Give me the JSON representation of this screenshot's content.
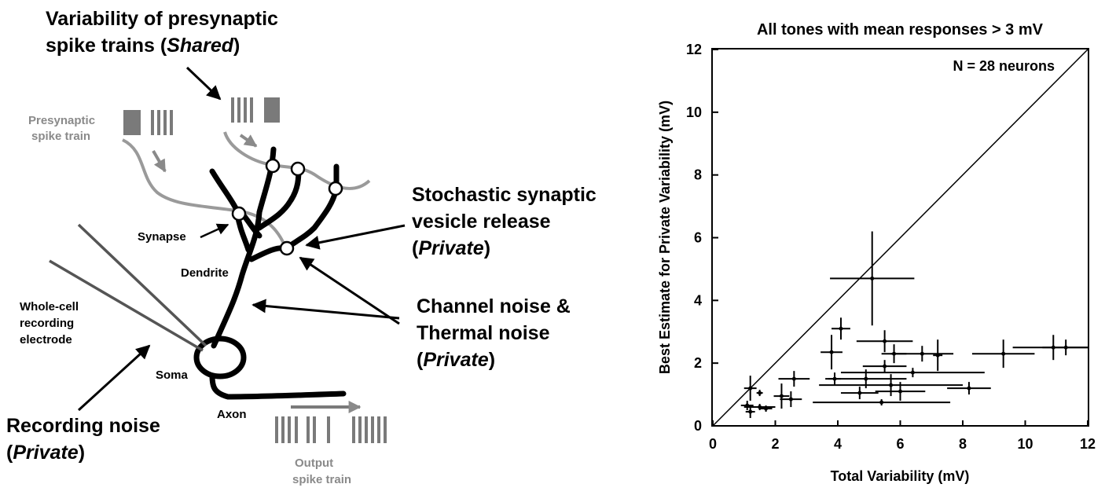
{
  "diagram": {
    "shared_title": {
      "line1": "Variability of presynaptic",
      "line2_prefix": "spike trains (",
      "line2_italic": "Shared",
      "line2_suffix": ")"
    },
    "presynaptic_label": {
      "line1": "Presynaptic",
      "line2": "spike train"
    },
    "synapse_label": "Synapse",
    "dendrite_label": "Dendrite",
    "soma_label": "Soma",
    "axon_label": "Axon",
    "electrode_label": {
      "line1": "Whole-cell",
      "line2": "recording",
      "line3": "electrode"
    },
    "output_label": {
      "line1": "Output",
      "line2": "spike train"
    },
    "vesicle_label": {
      "line1": "Stochastic synaptic",
      "line2": "vesicle release",
      "line3_prefix": "(",
      "line3_italic": "Private",
      "line3_suffix": ")"
    },
    "channel_label": {
      "line1": "Channel noise &",
      "line2": "Thermal noise",
      "line3_prefix": "(",
      "line3_italic": "Private",
      "line3_suffix": ")"
    },
    "recording_label": {
      "line1": "Recording noise",
      "line2_prefix": "(",
      "line2_italic": "Private",
      "line2_suffix": ")"
    },
    "colors": {
      "neuron": "#000000",
      "presynaptic": "#8a8a8a",
      "spike_bars": "#7a7a7a"
    }
  },
  "chart_data": {
    "type": "scatter",
    "title": "All tones with mean responses > 3 mV",
    "annotation": "N = 28 neurons",
    "xlabel": "Total Variability (mV)",
    "ylabel": "Best Estimate for Private Variability (mV)",
    "xlim": [
      0,
      12
    ],
    "ylim": [
      0,
      12
    ],
    "xticks": [
      0,
      2,
      4,
      6,
      8,
      10,
      12
    ],
    "yticks": [
      0,
      2,
      4,
      6,
      8,
      10,
      12
    ],
    "reference_line": "y = x",
    "grid": false,
    "points": [
      {
        "x": 5.1,
        "y": 4.7,
        "xerr": 1.35,
        "yerr": 1.5
      },
      {
        "x": 4.1,
        "y": 3.1,
        "xerr": 0.3,
        "yerr": 0.35
      },
      {
        "x": 3.8,
        "y": 2.35,
        "xerr": 0.35,
        "yerr": 0.55
      },
      {
        "x": 5.5,
        "y": 2.7,
        "xerr": 0.9,
        "yerr": 0.35
      },
      {
        "x": 5.8,
        "y": 2.3,
        "xerr": 0.4,
        "yerr": 0.3
      },
      {
        "x": 6.7,
        "y": 2.3,
        "xerr": 1.0,
        "yerr": 0.25
      },
      {
        "x": 7.2,
        "y": 2.25,
        "xerr": 0.15,
        "yerr": 0.5
      },
      {
        "x": 9.3,
        "y": 2.3,
        "xerr": 1.0,
        "yerr": 0.45
      },
      {
        "x": 10.9,
        "y": 2.5,
        "xerr": 1.3,
        "yerr": 0.4
      },
      {
        "x": 11.3,
        "y": 2.5,
        "xerr": 0.75,
        "yerr": 0.25
      },
      {
        "x": 5.5,
        "y": 1.9,
        "xerr": 0.7,
        "yerr": 0.2
      },
      {
        "x": 6.4,
        "y": 1.7,
        "xerr": 2.3,
        "yerr": 0.15
      },
      {
        "x": 3.9,
        "y": 1.5,
        "xerr": 0.2,
        "yerr": 0.2
      },
      {
        "x": 4.9,
        "y": 1.5,
        "xerr": 1.3,
        "yerr": 0.3
      },
      {
        "x": 2.6,
        "y": 1.5,
        "xerr": 0.5,
        "yerr": 0.25
      },
      {
        "x": 5.7,
        "y": 1.3,
        "xerr": 2.3,
        "yerr": 0.35
      },
      {
        "x": 1.2,
        "y": 1.2,
        "xerr": 0.2,
        "yerr": 0.4
      },
      {
        "x": 4.7,
        "y": 1.05,
        "xerr": 0.6,
        "yerr": 0.2
      },
      {
        "x": 6.0,
        "y": 1.1,
        "xerr": 0.8,
        "yerr": 0.3
      },
      {
        "x": 8.2,
        "y": 1.2,
        "xerr": 0.7,
        "yerr": 0.2
      },
      {
        "x": 1.5,
        "y": 1.05,
        "xerr": 0.1,
        "yerr": 0.1
      },
      {
        "x": 2.2,
        "y": 0.95,
        "xerr": 0.25,
        "yerr": 0.4
      },
      {
        "x": 2.5,
        "y": 0.85,
        "xerr": 0.35,
        "yerr": 0.25
      },
      {
        "x": 5.4,
        "y": 0.75,
        "xerr": 2.2,
        "yerr": 0.1
      },
      {
        "x": 1.1,
        "y": 0.65,
        "xerr": 0.2,
        "yerr": 0.15
      },
      {
        "x": 1.5,
        "y": 0.6,
        "xerr": 0.5,
        "yerr": 0.1
      },
      {
        "x": 1.2,
        "y": 0.45,
        "xerr": 0.15,
        "yerr": 0.2
      },
      {
        "x": 1.7,
        "y": 0.55,
        "xerr": 0.2,
        "yerr": 0.1
      }
    ]
  }
}
